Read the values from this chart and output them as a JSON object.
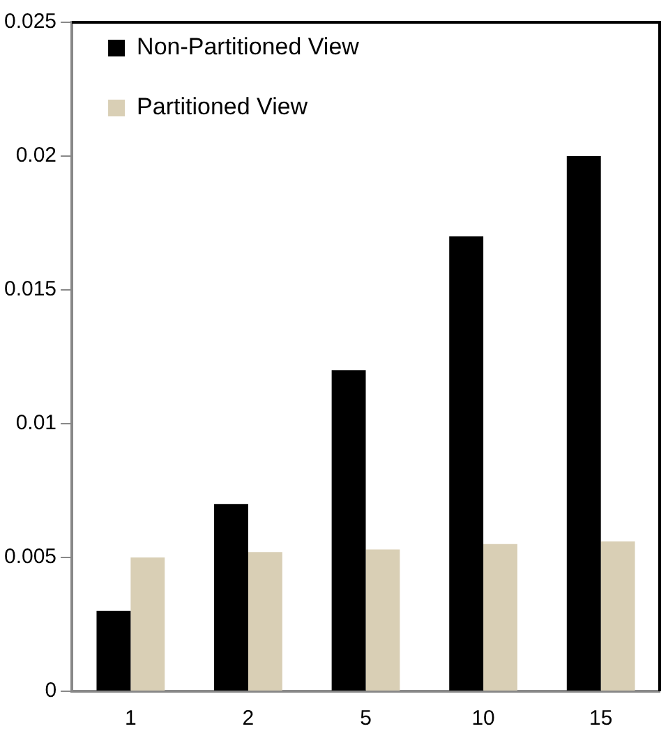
{
  "chart_data": {
    "type": "bar",
    "categories": [
      "1",
      "2",
      "5",
      "10",
      "15"
    ],
    "series": [
      {
        "name": "Non-Partitioned View",
        "color": "#000000",
        "values": [
          0.003,
          0.007,
          0.012,
          0.017,
          0.02
        ]
      },
      {
        "name": "Partitioned View",
        "color": "#d9cfb5",
        "values": [
          0.005,
          0.0052,
          0.0053,
          0.0055,
          0.0056
        ]
      }
    ],
    "ylim": [
      0,
      0.025
    ],
    "yticks": [
      0,
      0.005,
      0.01,
      0.015,
      0.02,
      0.025
    ],
    "grid": false,
    "legend": "top left"
  }
}
